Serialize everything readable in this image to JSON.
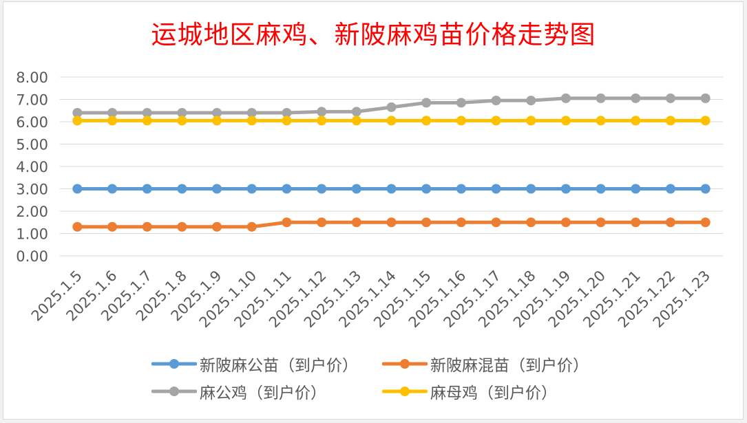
{
  "chart_data": {
    "type": "line",
    "title": "运城地区麻鸡、新陂麻鸡苗价格走势图",
    "categories": [
      "2025.1.5",
      "2025.1.6",
      "2025.1.7",
      "2025.1.8",
      "2025.1.9",
      "2025.1.10",
      "2025.1.11",
      "2025.1.12",
      "2025.1.13",
      "2025.1.14",
      "2025.1.15",
      "2025.1.16",
      "2025.1.17",
      "2025.1.18",
      "2025.1.19",
      "2025.1.20",
      "2025.1.21",
      "2025.1.22",
      "2025.1.23"
    ],
    "y_ticks": [
      "0.00",
      "1.00",
      "2.00",
      "3.00",
      "4.00",
      "5.00",
      "6.00",
      "7.00",
      "8.00"
    ],
    "ylim": [
      0,
      8
    ],
    "grid": "horizontal",
    "legend_position": "bottom",
    "series": [
      {
        "name": "新陂麻公苗（到户价）",
        "color": "#5b9bd5",
        "values": [
          3.0,
          3.0,
          3.0,
          3.0,
          3.0,
          3.0,
          3.0,
          3.0,
          3.0,
          3.0,
          3.0,
          3.0,
          3.0,
          3.0,
          3.0,
          3.0,
          3.0,
          3.0,
          3.0
        ]
      },
      {
        "name": "新陂麻混苗（到户价）",
        "color": "#ed7d31",
        "values": [
          1.3,
          1.3,
          1.3,
          1.3,
          1.3,
          1.3,
          1.5,
          1.5,
          1.5,
          1.5,
          1.5,
          1.5,
          1.5,
          1.5,
          1.5,
          1.5,
          1.5,
          1.5,
          1.5
        ]
      },
      {
        "name": "麻公鸡（到户价）",
        "color": "#a5a5a5",
        "values": [
          6.4,
          6.4,
          6.4,
          6.4,
          6.4,
          6.4,
          6.4,
          6.45,
          6.45,
          6.65,
          6.85,
          6.85,
          6.95,
          6.95,
          7.05,
          7.05,
          7.05,
          7.05,
          7.05
        ]
      },
      {
        "name": "麻母鸡（到户价）",
        "color": "#ffc000",
        "values": [
          6.05,
          6.05,
          6.05,
          6.05,
          6.05,
          6.05,
          6.05,
          6.05,
          6.05,
          6.05,
          6.05,
          6.05,
          6.05,
          6.05,
          6.05,
          6.05,
          6.05,
          6.05,
          6.05
        ]
      }
    ]
  }
}
